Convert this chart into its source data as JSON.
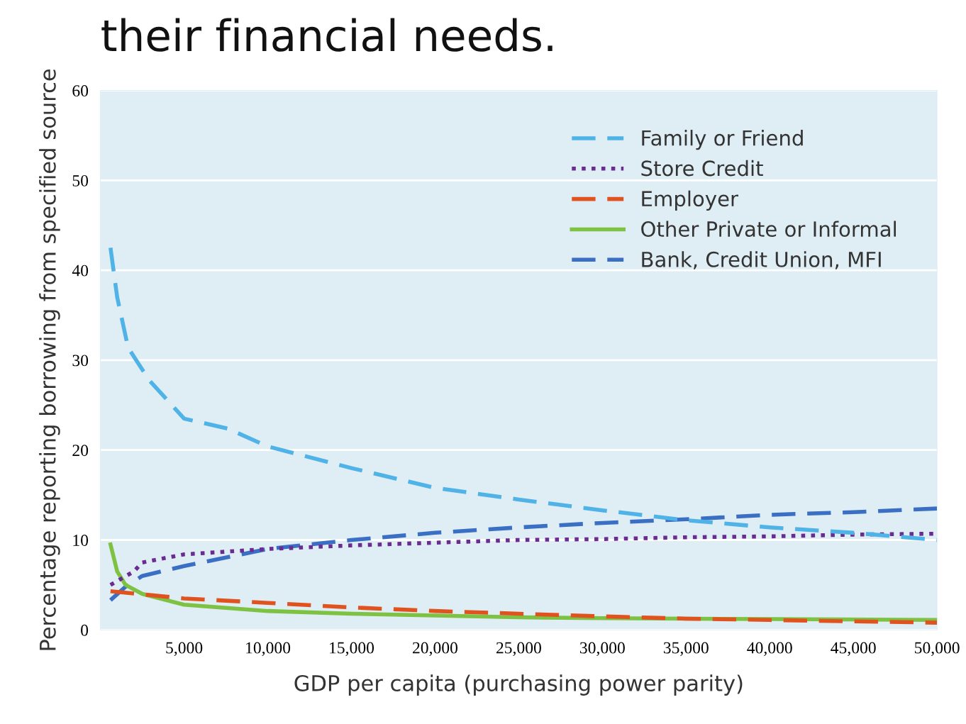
{
  "chart_data": {
    "type": "line",
    "title": "their financial needs.",
    "xlabel": "GDP per capita (purchasing power parity)",
    "ylabel": "Percentage reporting borrowing from specified source",
    "xlim": [
      0,
      50000
    ],
    "ylim": [
      0,
      60
    ],
    "xticks": [
      {
        "value": 5000,
        "label": "5,000"
      },
      {
        "value": 10000,
        "label": "10,000"
      },
      {
        "value": 15000,
        "label": "15,000"
      },
      {
        "value": 20000,
        "label": "20,000"
      },
      {
        "value": 25000,
        "label": "25,000"
      },
      {
        "value": 30000,
        "label": "30,000"
      },
      {
        "value": 35000,
        "label": "35,000"
      },
      {
        "value": 40000,
        "label": "40,000"
      },
      {
        "value": 45000,
        "label": "45,000"
      },
      {
        "value": 50000,
        "label": "50,000"
      }
    ],
    "yticks": [
      0,
      10,
      20,
      30,
      40,
      50,
      60
    ],
    "grid": "y",
    "legend": "top right",
    "marker": "none",
    "series": [
      {
        "name": "Family or Friend",
        "color": "#4fb3e8",
        "line_style": "dashed",
        "x": [
          600,
          1000,
          1650,
          2900,
          5000,
          7600,
          10000,
          15000,
          20000,
          25000,
          30000,
          35000,
          40000,
          45000,
          50000
        ],
        "values": [
          42.5,
          37,
          31.4,
          27.8,
          23.5,
          22.4,
          20.4,
          18.0,
          15.8,
          14.5,
          13.3,
          12.2,
          11.4,
          10.8,
          10.0
        ]
      },
      {
        "name": "Store Credit",
        "color": "#6a2c91",
        "line_style": "dotted",
        "x": [
          600,
          2000,
          2500,
          5000,
          10000,
          15000,
          20000,
          25000,
          30000,
          35000,
          40000,
          45000,
          50000
        ],
        "values": [
          5,
          6.5,
          7.5,
          8.4,
          9.0,
          9.4,
          9.7,
          10.0,
          10.1,
          10.3,
          10.4,
          10.6,
          10.7
        ]
      },
      {
        "name": "Employer",
        "color": "#e0531f",
        "line_style": "dashed",
        "x": [
          600,
          5000,
          10000,
          15000,
          20000,
          25000,
          30000,
          35000,
          40000,
          45000,
          50000
        ],
        "values": [
          4.3,
          3.5,
          3.0,
          2.5,
          2.1,
          1.8,
          1.5,
          1.25,
          1.1,
          0.95,
          0.8
        ]
      },
      {
        "name": "Other Private or Informal",
        "color": "#7dc242",
        "line_style": "solid",
        "x": [
          600,
          1000,
          1500,
          2500,
          5000,
          10000,
          15000,
          20000,
          25000,
          30000,
          40000,
          50000
        ],
        "values": [
          9.5,
          6.5,
          5.0,
          4.0,
          2.8,
          2.1,
          1.8,
          1.6,
          1.4,
          1.3,
          1.2,
          1.1
        ]
      },
      {
        "name": "Bank, Credit Union, MFI",
        "color": "#3a6fc4",
        "line_style": "dashed",
        "x": [
          600,
          1500,
          2500,
          5000,
          10000,
          15000,
          20000,
          25000,
          30000,
          35000,
          40000,
          45000,
          50000
        ],
        "values": [
          3.3,
          4.8,
          6.0,
          7.1,
          9.0,
          10.0,
          10.8,
          11.4,
          11.9,
          12.3,
          12.8,
          13.1,
          13.5
        ]
      }
    ]
  }
}
